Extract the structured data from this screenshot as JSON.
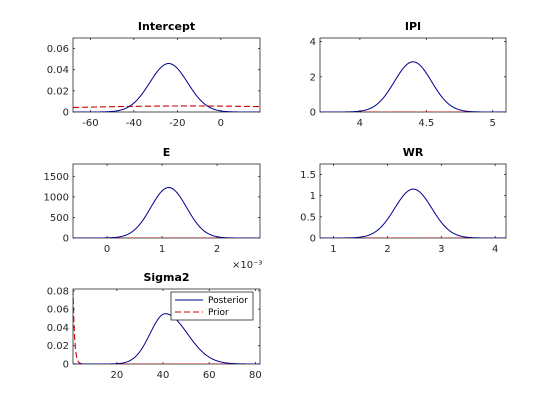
{
  "colors": {
    "posterior": "#00008b",
    "prior": "#cc0000",
    "axes": "#262626"
  },
  "chart_data": [
    {
      "type": "line",
      "title": "Intercept",
      "xlim": [
        -68,
        18
      ],
      "ylim": [
        0,
        0.07
      ],
      "xticks": [
        -60,
        -40,
        -20,
        0
      ],
      "xtick_labels": [
        "-60",
        "-40",
        "-20",
        "0"
      ],
      "yticks": [
        0,
        0.02,
        0.04,
        0.06
      ],
      "ytick_labels": [
        "0",
        "0.02",
        "0.04",
        "0.06"
      ],
      "series": [
        {
          "name": "Posterior",
          "style": "solid",
          "dist": "normal",
          "mean": -24,
          "sd": 8.7
        },
        {
          "name": "Prior",
          "style": "dashed",
          "dist": "normal",
          "mean": -15,
          "sd": 70
        }
      ]
    },
    {
      "type": "line",
      "title": "IPI",
      "xlim": [
        3.7,
        5.1
      ],
      "ylim": [
        0,
        4.2
      ],
      "xticks": [
        4,
        4.5,
        5
      ],
      "xtick_labels": [
        "4",
        "4.5",
        "5"
      ],
      "yticks": [
        0,
        2,
        4
      ],
      "ytick_labels": [
        "0",
        "2",
        "4"
      ],
      "series": [
        {
          "name": "Posterior",
          "style": "solid",
          "dist": "normal",
          "mean": 4.4,
          "sd": 0.14
        },
        {
          "name": "Prior",
          "style": "dashed",
          "dist": "flat",
          "value": 0
        }
      ]
    },
    {
      "type": "line",
      "title": "E",
      "xlim": [
        -0.00062,
        0.00278
      ],
      "ylim": [
        0,
        1800
      ],
      "xticks": [
        0,
        0.001,
        0.002
      ],
      "xtick_labels": [
        "0",
        "1",
        "2"
      ],
      "yticks": [
        0,
        500,
        1000,
        1500
      ],
      "ytick_labels": [
        "0",
        "500",
        "1000",
        "1500"
      ],
      "xexponent": "×10⁻³",
      "series": [
        {
          "name": "Posterior",
          "style": "solid",
          "dist": "normal",
          "mean": 0.00112,
          "sd": 0.000325
        },
        {
          "name": "Prior",
          "style": "dashed",
          "dist": "flat",
          "value": 0
        }
      ]
    },
    {
      "type": "line",
      "title": "WR",
      "xlim": [
        0.75,
        4.2
      ],
      "ylim": [
        0,
        1.75
      ],
      "xticks": [
        1,
        2,
        3,
        4
      ],
      "xtick_labels": [
        "1",
        "2",
        "3",
        "4"
      ],
      "yticks": [
        0,
        0.5,
        1,
        1.5
      ],
      "ytick_labels": [
        "0",
        "0.5",
        "1",
        "1.5"
      ],
      "series": [
        {
          "name": "Posterior",
          "style": "solid",
          "dist": "normal",
          "mean": 2.48,
          "sd": 0.345
        },
        {
          "name": "Prior",
          "style": "dashed",
          "dist": "flat",
          "value": 0
        }
      ]
    },
    {
      "type": "line",
      "title": "Sigma2",
      "xlim": [
        1,
        82
      ],
      "ylim": [
        0,
        0.082
      ],
      "xticks": [
        20,
        40,
        60,
        80
      ],
      "xtick_labels": [
        "20",
        "40",
        "60",
        "80"
      ],
      "yticks": [
        0,
        0.02,
        0.04,
        0.06,
        0.08
      ],
      "ytick_labels": [
        "0",
        "0.02",
        "0.04",
        "0.06",
        "0.08"
      ],
      "legend": {
        "location": "top-right",
        "entries": [
          "Posterior",
          "Prior"
        ]
      },
      "series": [
        {
          "name": "Posterior",
          "style": "solid",
          "dist": "skewed",
          "mode": 41,
          "sd_left": 6.6,
          "sd_right": 9.5,
          "peak": 0.055
        },
        {
          "name": "Prior",
          "style": "dashed",
          "dist": "decay",
          "start": 0.082,
          "rate": 1.5
        }
      ]
    }
  ]
}
